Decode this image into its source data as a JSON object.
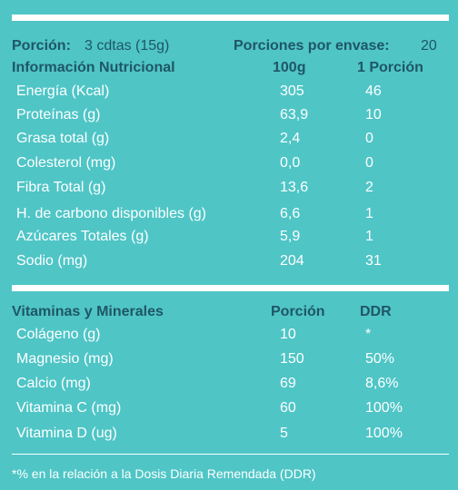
{
  "header": {
    "portion_label": "Porción:",
    "portion_value": "3 cdtas (15g)",
    "servings_label": "Porciones por envase:",
    "servings_value": "20"
  },
  "nutrition": {
    "title": "Información Nutricional",
    "col1": "100g",
    "col2": "1 Porción",
    "rows": [
      {
        "name": "Energía (Kcal)",
        "v1": "305",
        "v2": "46"
      },
      {
        "name": "Proteínas (g)",
        "v1": "63,9",
        "v2": "10"
      },
      {
        "name": "Grasa total (g)",
        "v1": "2,4",
        "v2": "0"
      },
      {
        "name": "Colesterol (mg)",
        "v1": "0,0",
        "v2": "0"
      },
      {
        "name": "Fibra Total (g)",
        "v1": "13,6",
        "v2": "2"
      },
      {
        "name": "H. de carbono disponibles (g)",
        "v1": "6,6",
        "v2": "1"
      },
      {
        "name": "Azúcares Totales (g)",
        "v1": "5,9",
        "v2": "1"
      },
      {
        "name": "Sodio (mg)",
        "v1": "204",
        "v2": "31"
      }
    ]
  },
  "vitamins": {
    "title": "Vitaminas y Minerales",
    "col1": "Porción",
    "col2": "DDR",
    "rows": [
      {
        "name": "Colágeno (g)",
        "v1": "10",
        "v2": "*"
      },
      {
        "name": "Magnesio (mg)",
        "v1": "150",
        "v2": "50%"
      },
      {
        "name": "Calcio (mg)",
        "v1": "69",
        "v2": "8,6%"
      },
      {
        "name": "Vitamina C (mg)",
        "v1": "60",
        "v2": "100%"
      },
      {
        "name": "Vitamina D (ug)",
        "v1": "5",
        "v2": "100%"
      }
    ]
  },
  "footnote": "*% en la relación a la Dosis Diaria Remendada (DDR)"
}
